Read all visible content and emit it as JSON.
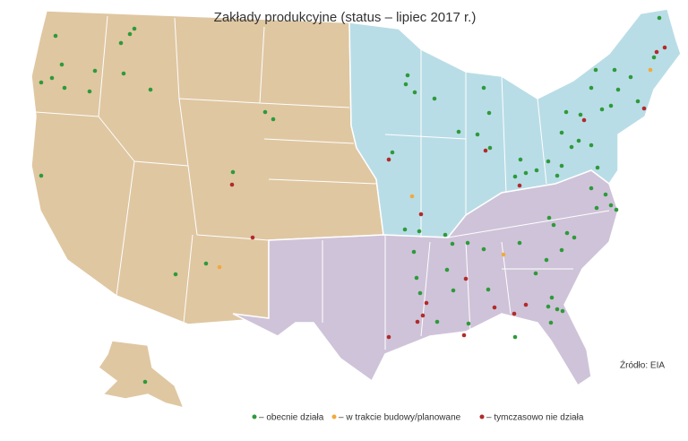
{
  "title": "Zakłady produkcyjne (status – lipiec 2017 r.)",
  "source": "Źródło: EIA",
  "legend": {
    "operating": "– obecnie działa",
    "planned": "– w trakcie budowy/planowane",
    "idle": "– tymczasowo nie działa"
  }
}
